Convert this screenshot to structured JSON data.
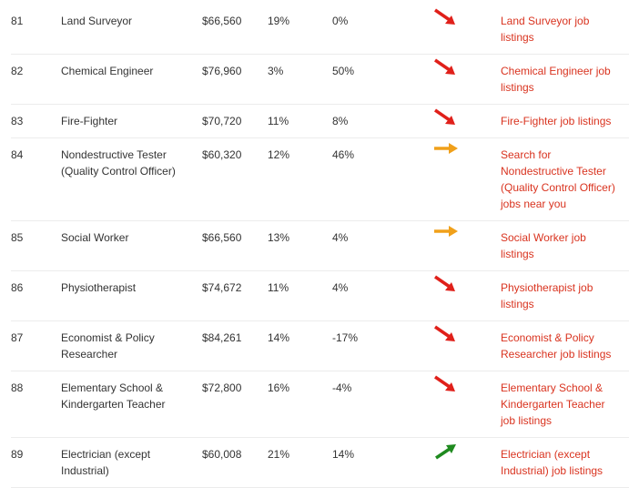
{
  "table": {
    "rows": [
      [
        "81",
        "Land Surveyor",
        "$66,560",
        "19%",
        "0%",
        "Land Surveyor job listings"
      ],
      [
        "82",
        "Chemical Engineer",
        "$76,960",
        "3%",
        "50%",
        "Chemical Engineer job listings"
      ],
      [
        "83",
        "Fire-Fighter",
        "$70,720",
        "11%",
        "8%",
        "Fire-Fighter job listings"
      ],
      [
        "84",
        "Nondestructive Tester (Quality Control Officer)",
        "$60,320",
        "12%",
        "46%",
        "Search for Nondestructive Tester (Quality Control Officer) jobs near you"
      ],
      [
        "85",
        "Social Worker",
        "$66,560",
        "13%",
        "4%",
        "Social Worker job listings"
      ],
      [
        "86",
        "Physiotherapist",
        "$74,672",
        "11%",
        "4%",
        "Physiotherapist job listings"
      ],
      [
        "87",
        "Economist & Policy Researcher",
        "$84,261",
        "14%",
        "-17%",
        "Economist & Policy Researcher job listings"
      ],
      [
        "88",
        "Elementary School & Kindergarten Teacher",
        "$72,800",
        "16%",
        "-4%",
        "Elementary School & Kindergarten Teacher job listings"
      ],
      [
        "89",
        "Electrician (except Industrial)",
        "$60,008",
        "21%",
        "14%",
        "Electrician (except Industrial) job listings"
      ]
    ]
  }
}
